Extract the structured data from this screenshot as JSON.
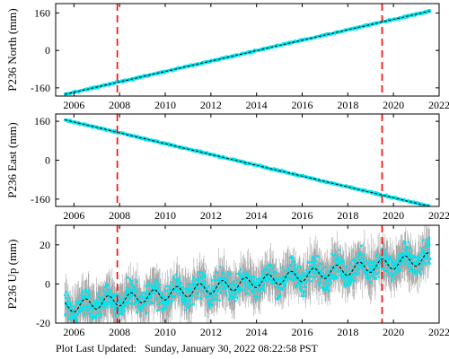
{
  "chart_data": [
    {
      "type": "scatter",
      "ylabel": "P236 North (mm)",
      "xlim": [
        2005.2,
        2022.0
      ],
      "ylim": [
        -195,
        200
      ],
      "xticks": [
        2006,
        2008,
        2010,
        2012,
        2014,
        2016,
        2018,
        2020,
        2022
      ],
      "yticks": [
        -160,
        0,
        160
      ],
      "x_range": [
        2005.6,
        2021.6
      ],
      "trend": {
        "x": [
          2005.6,
          2021.6
        ],
        "y": [
          -188,
          168
        ]
      },
      "scatter_spread": 4,
      "error_bar_spread": 0,
      "seasonal_amplitude": 0,
      "vlines": [
        2007.9,
        2019.5
      ],
      "colors": {
        "points": "#00e5ee",
        "error_bars": "#aaaaaa",
        "trend": "#000000",
        "vlines": "#ff0000"
      }
    },
    {
      "type": "scatter",
      "ylabel": "P236 East (mm)",
      "xlim": [
        2005.2,
        2022.0
      ],
      "ylim": [
        -190,
        190
      ],
      "xticks": [
        2006,
        2008,
        2010,
        2012,
        2014,
        2016,
        2018,
        2020,
        2022
      ],
      "yticks": [
        -160,
        0,
        160
      ],
      "x_range": [
        2005.6,
        2021.6
      ],
      "trend": {
        "x": [
          2005.6,
          2021.6
        ],
        "y": [
          166,
          -190
        ]
      },
      "scatter_spread": 4,
      "error_bar_spread": 0,
      "seasonal_amplitude": 0,
      "vlines": [
        2007.9,
        2019.5
      ],
      "colors": {
        "points": "#00e5ee",
        "error_bars": "#aaaaaa",
        "trend": "#000000",
        "vlines": "#ff0000"
      }
    },
    {
      "type": "scatter",
      "ylabel": "P236 Up (mm)",
      "xlim": [
        2005.2,
        2022.0
      ],
      "ylim": [
        -20,
        30
      ],
      "xticks": [
        2006,
        2008,
        2010,
        2012,
        2014,
        2016,
        2018,
        2020,
        2022
      ],
      "yticks": [
        -20,
        0,
        20
      ],
      "x_range": [
        2005.6,
        2021.6
      ],
      "trend": {
        "x": [
          2005.6,
          2021.6
        ],
        "y": [
          -12,
          13
        ]
      },
      "scatter_spread": 6,
      "error_bar_spread": 8,
      "seasonal_amplitude": 3,
      "vlines": [
        2007.9,
        2019.5
      ],
      "colors": {
        "points": "#00e5ee",
        "error_bars": "#aaaaaa",
        "trend": "#000000",
        "vlines": "#ff0000"
      }
    }
  ],
  "footer": {
    "label": "Plot Last Updated:",
    "timestamp": "Sunday, January 30, 2022 08:22:58 PST"
  }
}
